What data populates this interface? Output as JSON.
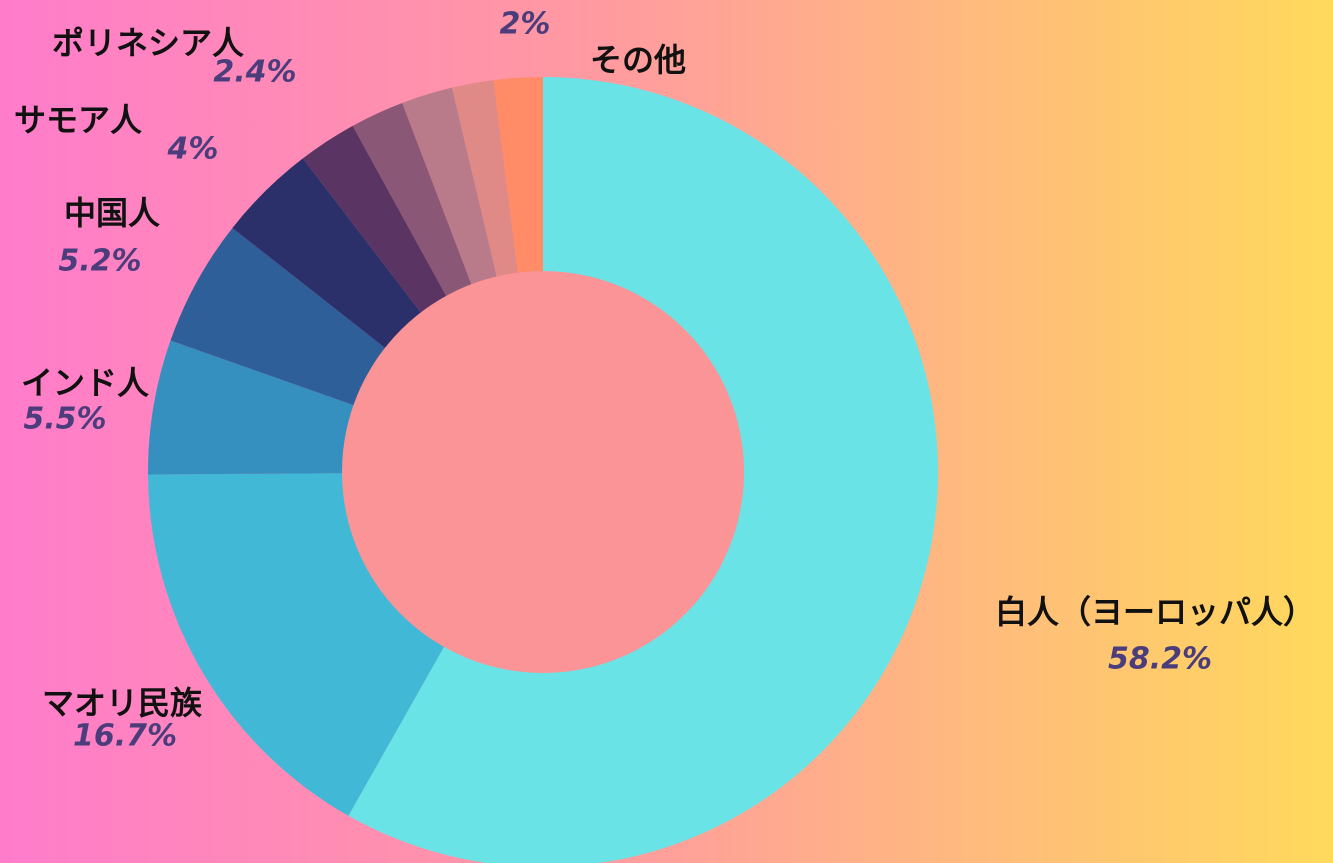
{
  "chart_data": {
    "type": "donut",
    "categories": [
      "白人（ヨーロッパ人）",
      "マオリ民族",
      "インド人",
      "中国人",
      "サモア人",
      "ポリネシア人",
      null,
      null,
      null,
      "その他"
    ],
    "values": [
      58.2,
      16.7,
      5.5,
      5.2,
      4,
      2.4,
      2.2,
      2.1,
      1.7,
      2
    ],
    "value_labels": [
      "58.2%",
      "16.7%",
      "5.5%",
      "5.2%",
      "4%",
      "2.4%",
      null,
      null,
      null,
      "2%"
    ],
    "colors": [
      "#6ae3e6",
      "#40b8d6",
      "#3590bf",
      "#2e5f98",
      "#2b2f6a",
      "#5a3564",
      "#8a5876",
      "#b97a8a",
      "#e08a88",
      "#ff8c66"
    ]
  }
}
